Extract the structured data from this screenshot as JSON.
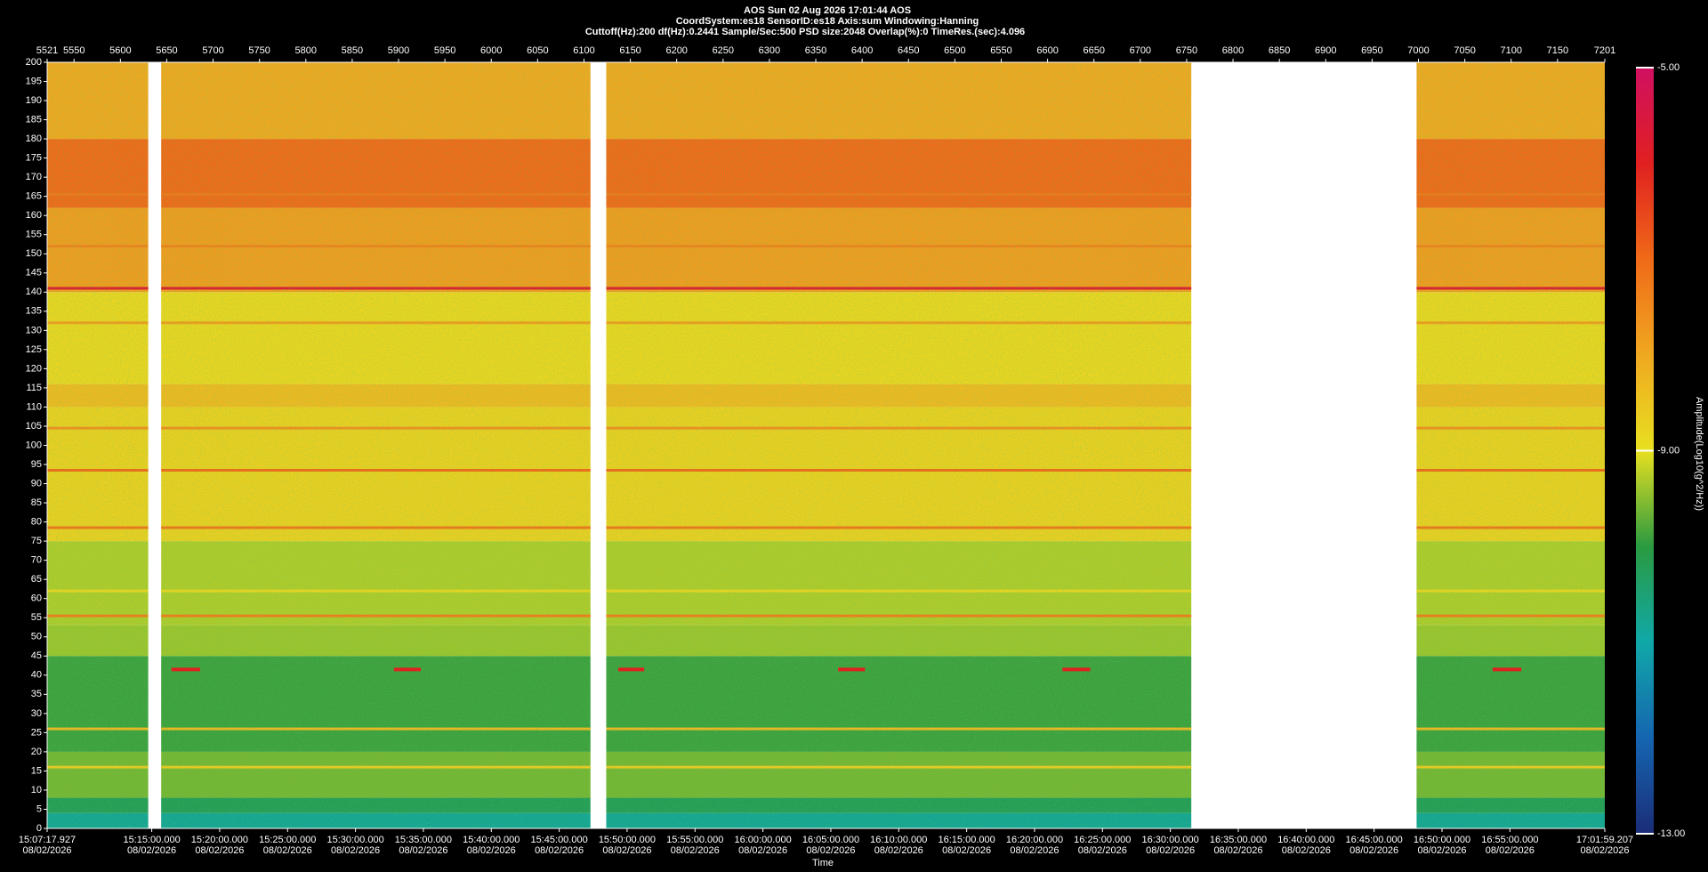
{
  "chart_data": {
    "type": "spectrogram",
    "title": "AOS  Sun 02 Aug 2026 17:01:44  AOS",
    "subtitle": "CoordSystem:es18   SensorID:es18   Axis:sum   Windowing:Hanning",
    "info": "Cuttoff(Hz):200    df(Hz):0.2441    Sample/Sec:500    PSD size:2048    Overlap(%):0    TimeRes.(sec):4.096",
    "xlabel": "Time",
    "colorbar_label": "Amplitude(Log10(g^2/Hz))",
    "xlim": [
      5521,
      7201
    ],
    "xticks": [
      5521,
      5550,
      5600,
      5650,
      5700,
      5750,
      5800,
      5850,
      5900,
      5950,
      6000,
      6050,
      6100,
      6150,
      6200,
      6250,
      6300,
      6350,
      6400,
      6450,
      6500,
      6550,
      6600,
      6650,
      6700,
      6750,
      6800,
      6850,
      6900,
      6950,
      7000,
      7050,
      7100,
      7150,
      7201
    ],
    "time_lim": [
      "15:07:17.927",
      "17:01:59.207"
    ],
    "time_ticks": [
      {
        "time": "15:07:17.927",
        "date": "08/02/2026"
      },
      {
        "time": "15:15:00.000",
        "date": "08/02/2026"
      },
      {
        "time": "15:20:00.000",
        "date": "08/02/2026"
      },
      {
        "time": "15:25:00.000",
        "date": "08/02/2026"
      },
      {
        "time": "15:30:00.000",
        "date": "08/02/2026"
      },
      {
        "time": "15:35:00.000",
        "date": "08/02/2026"
      },
      {
        "time": "15:40:00.000",
        "date": "08/02/2026"
      },
      {
        "time": "15:45:00.000",
        "date": "08/02/2026"
      },
      {
        "time": "15:50:00.000",
        "date": "08/02/2026"
      },
      {
        "time": "15:55:00.000",
        "date": "08/02/2026"
      },
      {
        "time": "16:00:00.000",
        "date": "08/02/2026"
      },
      {
        "time": "16:05:00.000",
        "date": "08/02/2026"
      },
      {
        "time": "16:10:00.000",
        "date": "08/02/2026"
      },
      {
        "time": "16:15:00.000",
        "date": "08/02/2026"
      },
      {
        "time": "16:20:00.000",
        "date": "08/02/2026"
      },
      {
        "time": "16:25:00.000",
        "date": "08/02/2026"
      },
      {
        "time": "16:30:00.000",
        "date": "08/02/2026"
      },
      {
        "time": "16:35:00.000",
        "date": "08/02/2026"
      },
      {
        "time": "16:40:00.000",
        "date": "08/02/2026"
      },
      {
        "time": "16:45:00.000",
        "date": "08/02/2026"
      },
      {
        "time": "16:50:00.000",
        "date": "08/02/2026"
      },
      {
        "time": "16:55:00.000",
        "date": "08/02/2026"
      },
      {
        "time": "17:01:59.207",
        "date": "08/02/2026"
      }
    ],
    "ylim": [
      0,
      200
    ],
    "yticks": [
      0,
      5,
      10,
      15,
      20,
      25,
      30,
      35,
      40,
      45,
      50,
      55,
      60,
      65,
      70,
      75,
      80,
      85,
      90,
      95,
      100,
      105,
      110,
      115,
      120,
      125,
      130,
      135,
      140,
      145,
      150,
      155,
      160,
      165,
      170,
      175,
      180,
      185,
      190,
      195,
      200
    ],
    "clim": [
      -13,
      -5
    ],
    "cticks": [
      {
        "value": -5,
        "label": "-5.00"
      },
      {
        "value": -9,
        "label": "-9.00"
      },
      {
        "value": -13,
        "label": "-13.00"
      }
    ],
    "colormap": [
      "#1b2d78",
      "#1565b0",
      "#10a8a8",
      "#2a9a40",
      "#e8e020",
      "#f0a820",
      "#f06a18",
      "#e02020",
      "#d01060"
    ],
    "segments": [
      {
        "start": 5521,
        "end": 5630
      },
      {
        "start": 5644,
        "end": 6107
      },
      {
        "start": 6124,
        "end": 6755
      },
      {
        "start": 6998,
        "end": 7201
      }
    ],
    "bands": [
      {
        "low": 0,
        "high": 4,
        "amplitude": -10.8
      },
      {
        "low": 4,
        "high": 8,
        "amplitude": -10.2
      },
      {
        "low": 8,
        "high": 20,
        "amplitude": -9.6
      },
      {
        "low": 20,
        "high": 45,
        "amplitude": -9.9
      },
      {
        "low": 45,
        "high": 53,
        "amplitude": -9.4
      },
      {
        "low": 53,
        "high": 75,
        "amplitude": -9.3
      },
      {
        "low": 75,
        "high": 110,
        "amplitude": -8.7
      },
      {
        "low": 110,
        "high": 116,
        "amplitude": -8.3
      },
      {
        "low": 116,
        "high": 140,
        "amplitude": -8.8
      },
      {
        "low": 140,
        "high": 162,
        "amplitude": -7.8
      },
      {
        "low": 162,
        "high": 180,
        "amplitude": -7.0
      },
      {
        "low": 180,
        "high": 200,
        "amplitude": -8.0
      }
    ],
    "lines": [
      {
        "frequency": 141,
        "amplitude": -5.8
      },
      {
        "frequency": 93.5,
        "amplitude": -7.0
      },
      {
        "frequency": 55.5,
        "amplitude": -7.3
      },
      {
        "frequency": 78.5,
        "amplitude": -7.2
      },
      {
        "frequency": 104.5,
        "amplitude": -7.6
      },
      {
        "frequency": 26,
        "amplitude": -8.3
      },
      {
        "frequency": 16,
        "amplitude": -8.6
      },
      {
        "frequency": 62,
        "amplitude": -8.8
      },
      {
        "frequency": 132,
        "amplitude": -7.8
      },
      {
        "frequency": 165.5,
        "amplitude": -7.2
      },
      {
        "frequency": 152,
        "amplitude": -7.4
      }
    ],
    "events": [
      {
        "start": 5655,
        "end": 5686,
        "frequency": 41.5,
        "amplitude": -6
      },
      {
        "start": 5895,
        "end": 5924,
        "frequency": 41.5,
        "amplitude": -6
      },
      {
        "start": 6137,
        "end": 6165,
        "frequency": 41.5,
        "amplitude": -6
      },
      {
        "start": 6374,
        "end": 6403,
        "frequency": 41.5,
        "amplitude": -6
      },
      {
        "start": 6616,
        "end": 6646,
        "frequency": 41.5,
        "amplitude": -6
      },
      {
        "start": 7080,
        "end": 7111,
        "frequency": 41.5,
        "amplitude": -6
      }
    ]
  }
}
